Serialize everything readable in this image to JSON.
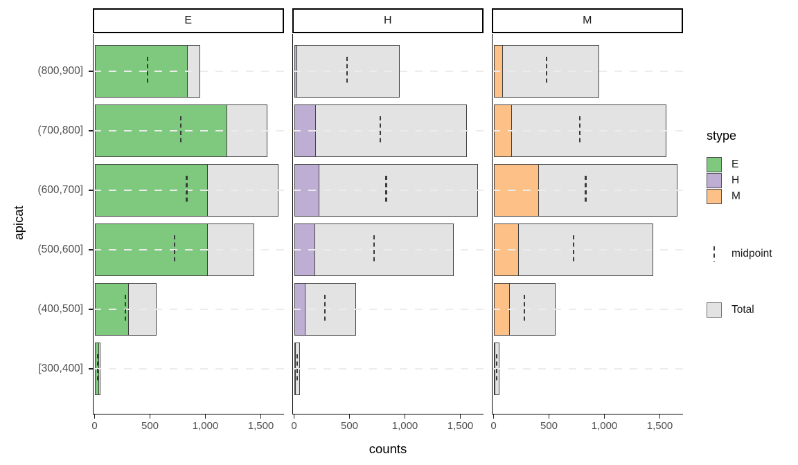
{
  "axes": {
    "y_title": "apicat",
    "x_title": "counts",
    "y_categories": [
      "(800,900]",
      "(700,800]",
      "(600,700]",
      "(500,600]",
      "(400,500]",
      "[300,400]"
    ],
    "x_tick_labels": [
      "0",
      "500",
      "1,000",
      "1,500"
    ],
    "x_tick_values": [
      0,
      500,
      1000,
      1500
    ]
  },
  "facets": [
    {
      "label": "E"
    },
    {
      "label": "H"
    },
    {
      "label": "M"
    }
  ],
  "legend": {
    "title": "stype",
    "entries": [
      {
        "label": "E",
        "color": "#7FC97F"
      },
      {
        "label": "H",
        "color": "#BEAED4"
      },
      {
        "label": "M",
        "color": "#FDC086"
      }
    ],
    "midpoint_label": "midpoint",
    "total_label": "Total",
    "total_color": "#E3E3E3"
  },
  "colors": {
    "bar_border": "#404040",
    "total_fill": "#E3E3E3",
    "gridline": "#ECECEC",
    "midpoint": "#3A3A3A",
    "axis_line": "#000000",
    "tick_label": "#4d4d4d"
  },
  "chart_data": {
    "type": "bar",
    "orientation": "horizontal",
    "title": "",
    "xlabel": "counts",
    "ylabel": "apicat",
    "xlim": [
      0,
      1700
    ],
    "x_ticks": [
      0,
      500,
      1000,
      1500
    ],
    "grid": "dashed horizontal gridline at each category, drawn on top of bars",
    "legend_position": "right",
    "facets": [
      "E",
      "H",
      "M"
    ],
    "categories": [
      "(800,900]",
      "(700,800]",
      "(600,700]",
      "(500,600]",
      "(400,500]",
      "[300,400]"
    ],
    "series": [
      {
        "name": "E",
        "facet": "E",
        "color": "#7FC97F",
        "values": [
          840,
          1195,
          1020,
          1020,
          309,
          42
        ]
      },
      {
        "name": "H",
        "facet": "H",
        "color": "#BEAED4",
        "values": [
          31,
          199,
          230,
          192,
          105,
          7
        ]
      },
      {
        "name": "M",
        "facet": "M",
        "color": "#FDC086",
        "values": [
          83,
          167,
          412,
          230,
          146,
          5
        ]
      }
    ],
    "total": [
      954,
      1561,
      1662,
      1442,
      560,
      54
    ],
    "midpoint": [
      477,
      780,
      831,
      721,
      280,
      27
    ],
    "notes": "Each facet shows a grey Total bar (same across facets), overlaid by that facet's stype count bar; dashed tick = midpoint (half of Total)."
  }
}
